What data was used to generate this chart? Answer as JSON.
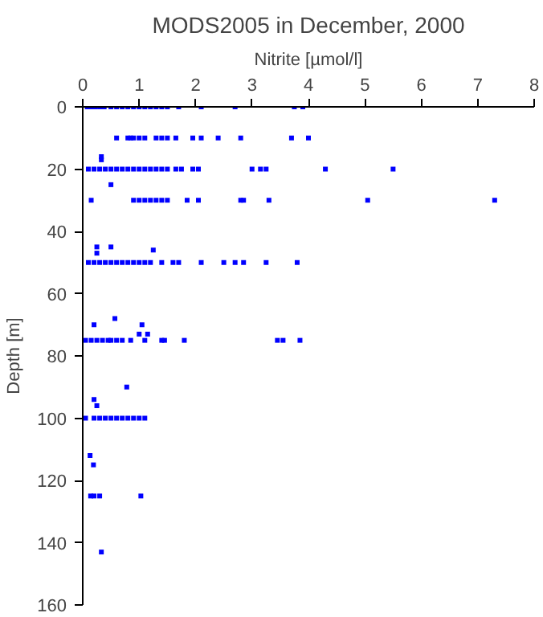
{
  "chart_data": {
    "type": "scatter",
    "title": "MODS2005 in December, 2000",
    "xlabel": "Nitrite [µmol/l]",
    "ylabel": "Depth [m]",
    "xlim": [
      0,
      8
    ],
    "xticks": [
      0,
      1,
      2,
      3,
      4,
      5,
      6,
      7,
      8
    ],
    "ylim": [
      160,
      0
    ],
    "yticks": [
      0,
      20,
      40,
      60,
      80,
      100,
      120,
      140,
      160
    ],
    "grid": false,
    "marker": "square",
    "series": [
      {
        "color": "#0000ff",
        "x": [
          0.08,
          0.15,
          0.22,
          0.3,
          0.38,
          0.5,
          0.6,
          0.7,
          0.8,
          0.9,
          1.0,
          1.1,
          1.2,
          1.3,
          1.4,
          1.5,
          1.7,
          2.1,
          2.7,
          3.75,
          3.9,
          0.6,
          0.8,
          0.85,
          0.9,
          1.0,
          1.1,
          1.3,
          1.4,
          1.5,
          1.65,
          1.95,
          2.1,
          2.4,
          2.8,
          3.7,
          4.0,
          0.33,
          0.33,
          0.1,
          0.2,
          0.3,
          0.4,
          0.5,
          0.6,
          0.7,
          0.8,
          0.9,
          1.0,
          1.1,
          1.2,
          1.3,
          1.4,
          1.5,
          1.65,
          1.75,
          1.95,
          2.05,
          3.0,
          3.15,
          3.25,
          4.3,
          5.5,
          0.5,
          0.15,
          0.9,
          1.0,
          1.1,
          1.2,
          1.3,
          1.4,
          1.5,
          1.85,
          2.05,
          2.8,
          2.85,
          3.3,
          5.05,
          7.3,
          0.25,
          0.25,
          0.5,
          1.25,
          0.1,
          0.2,
          0.3,
          0.4,
          0.5,
          0.6,
          0.7,
          0.8,
          0.9,
          1.0,
          1.1,
          1.2,
          1.4,
          1.6,
          1.7,
          2.1,
          2.5,
          2.7,
          2.85,
          3.25,
          3.8,
          0.57,
          0.2,
          1.05,
          1.0,
          1.15,
          0.05,
          0.15,
          0.25,
          0.35,
          0.45,
          0.5,
          0.6,
          0.7,
          0.85,
          1.1,
          1.4,
          1.45,
          1.8,
          3.45,
          3.55,
          3.85,
          0.78,
          0.2,
          0.25,
          0.05,
          0.2,
          0.3,
          0.4,
          0.5,
          0.6,
          0.7,
          0.8,
          0.9,
          1.0,
          1.1,
          0.13,
          0.19,
          0.14,
          0.2,
          0.3,
          1.03,
          0.33
        ],
        "values": [
          0,
          0,
          0,
          0,
          0,
          0,
          0,
          0,
          0,
          0,
          0,
          0,
          0,
          0,
          0,
          0,
          0,
          0,
          0,
          0,
          0,
          10,
          10,
          10,
          10,
          10,
          10,
          10,
          10,
          10,
          10,
          10,
          10,
          10,
          10,
          10,
          10,
          16,
          17,
          20,
          20,
          20,
          20,
          20,
          20,
          20,
          20,
          20,
          20,
          20,
          20,
          20,
          20,
          20,
          20,
          20,
          20,
          20,
          20,
          20,
          20,
          20,
          20,
          25,
          30,
          30,
          30,
          30,
          30,
          30,
          30,
          30,
          30,
          30,
          30,
          30,
          30,
          30,
          30,
          45,
          47,
          45,
          46,
          50,
          50,
          50,
          50,
          50,
          50,
          50,
          50,
          50,
          50,
          50,
          50,
          50,
          50,
          50,
          50,
          50,
          50,
          50,
          50,
          50,
          68,
          70,
          70,
          73,
          73,
          75,
          75,
          75,
          75,
          75,
          75,
          75,
          75,
          75,
          75,
          75,
          75,
          75,
          75,
          75,
          75,
          90,
          94,
          96,
          100,
          100,
          100,
          100,
          100,
          100,
          100,
          100,
          100,
          100,
          100,
          112,
          115,
          125,
          125,
          125,
          125,
          143
        ]
      }
    ]
  }
}
